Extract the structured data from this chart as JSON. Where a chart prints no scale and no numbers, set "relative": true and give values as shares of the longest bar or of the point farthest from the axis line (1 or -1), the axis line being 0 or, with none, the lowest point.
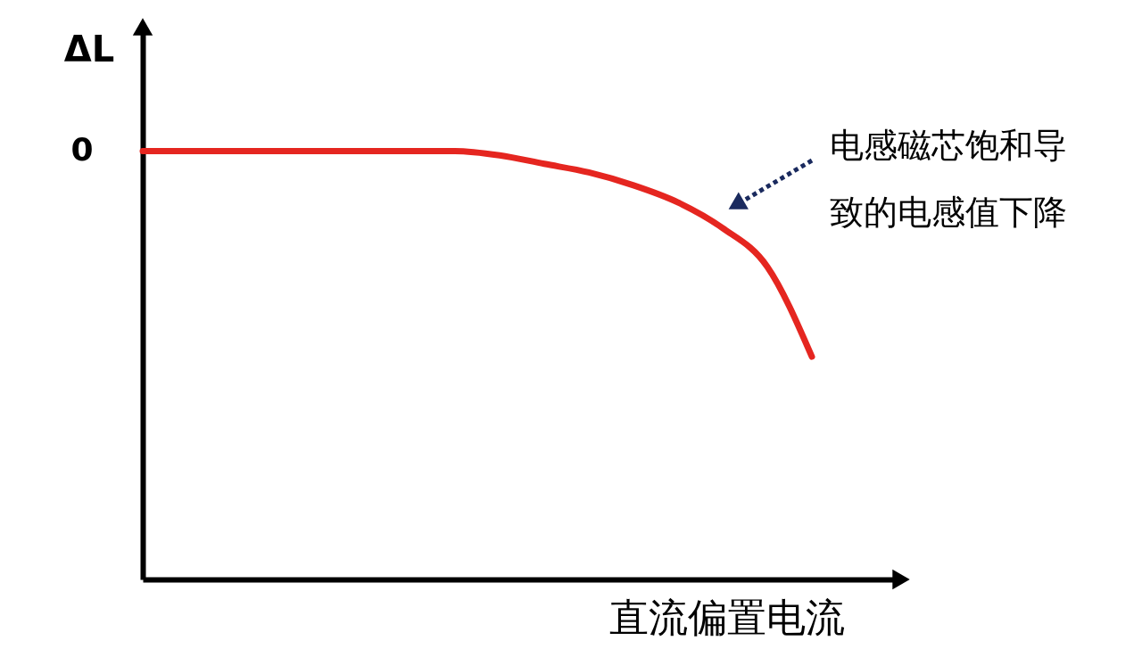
{
  "chart_data": {
    "type": "line",
    "relative": true,
    "xlabel": "直流偏置电流",
    "ylabel": "ΔL",
    "categories": [
      null,
      null,
      null,
      null,
      null,
      null,
      null,
      null,
      null,
      null,
      null,
      null,
      null,
      null,
      null,
      null
    ],
    "series": [
      {
        "color": "#e52620",
        "values": [
          1,
          1,
          1,
          1,
          1,
          1,
          1,
          1,
          0.99,
          0.97,
          0.95,
          0.92,
          0.88,
          0.82,
          0.73,
          0.52
        ]
      }
    ],
    "annotations": [
      "0",
      "电感磁芯饱和导致的电感值下降"
    ]
  }
}
